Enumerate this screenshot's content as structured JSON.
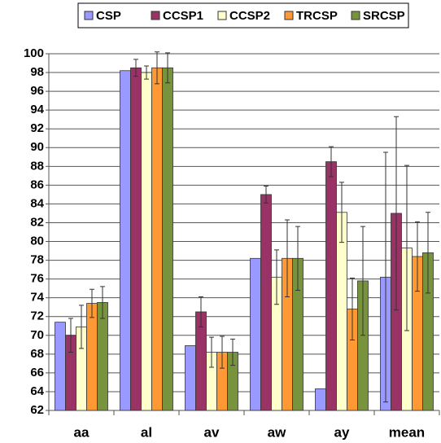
{
  "chart_data": {
    "type": "bar",
    "categories": [
      "aa",
      "al",
      "av",
      "aw",
      "ay",
      "mean"
    ],
    "series": [
      {
        "name": "CSP",
        "color": "#9999ff",
        "values": [
          71.4,
          98.2,
          68.9,
          78.2,
          64.3,
          76.2
        ],
        "errors": [
          null,
          null,
          null,
          null,
          null,
          13.3
        ]
      },
      {
        "name": "CCSP1",
        "color": "#993366",
        "values": [
          70.0,
          98.5,
          72.5,
          85.0,
          88.5,
          83.0
        ],
        "errors": [
          1.8,
          0.9,
          1.6,
          0.9,
          1.6,
          10.3
        ]
      },
      {
        "name": "CCSP2",
        "color": "#ffffcc",
        "values": [
          70.9,
          98.0,
          68.2,
          76.2,
          83.1,
          79.3
        ],
        "errors": [
          2.3,
          0.7,
          1.6,
          2.9,
          3.2,
          8.8
        ]
      },
      {
        "name": "TRCSP",
        "color": "#ff9933",
        "values": [
          73.4,
          98.5,
          68.2,
          78.2,
          72.8,
          78.4
        ],
        "errors": [
          1.5,
          1.7,
          1.7,
          4.1,
          3.3,
          3.7
        ]
      },
      {
        "name": "SRCSP",
        "color": "#77933c",
        "values": [
          73.5,
          98.5,
          68.2,
          78.2,
          75.8,
          78.8
        ],
        "errors": [
          1.7,
          1.6,
          1.4,
          3.4,
          5.8,
          4.3
        ]
      }
    ],
    "ylim": [
      62,
      100
    ],
    "yticks": [
      62,
      64,
      66,
      68,
      70,
      72,
      74,
      76,
      78,
      80,
      82,
      84,
      86,
      88,
      90,
      92,
      94,
      96,
      98,
      100
    ],
    "grid": true,
    "legend": "top"
  }
}
